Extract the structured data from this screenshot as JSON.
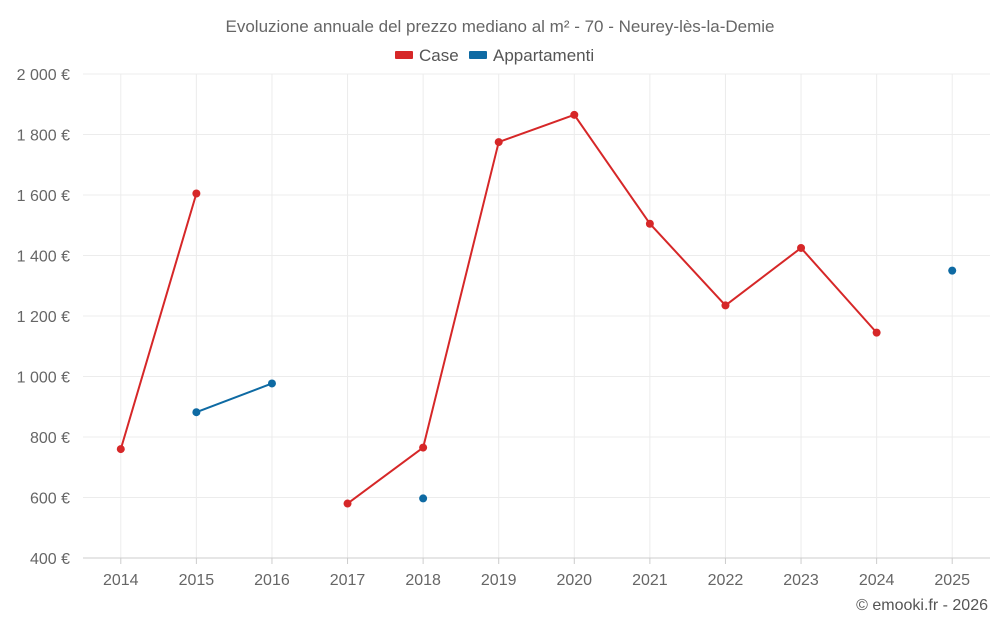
{
  "chart_data": {
    "type": "line",
    "title": "Evoluzione annuale del prezzo mediano al m² - 70 - Neurey-lès-la-Demie",
    "categories": [
      "2014",
      "2015",
      "2016",
      "2017",
      "2018",
      "2019",
      "2020",
      "2021",
      "2022",
      "2023",
      "2024",
      "2025"
    ],
    "series": [
      {
        "name": "Case",
        "color": "#d62728",
        "values": [
          760,
          1605,
          null,
          580,
          765,
          1775,
          1865,
          1505,
          1235,
          1425,
          1145,
          null
        ]
      },
      {
        "name": "Appartamenti",
        "color": "#0e6aa3",
        "values": [
          null,
          882,
          977,
          null,
          597,
          null,
          null,
          null,
          null,
          null,
          null,
          1350
        ]
      }
    ],
    "ylim": [
      400,
      2000
    ],
    "yticks": [
      400,
      600,
      800,
      1000,
      1200,
      1400,
      1600,
      1800,
      2000
    ],
    "ytick_labels": [
      "400 €",
      "600 €",
      "800 €",
      "1 000 €",
      "1 200 €",
      "1 400 €",
      "1 600 €",
      "1 800 €",
      "2 000 €"
    ],
    "legend": "top-center",
    "grid": true,
    "xlabel": "",
    "ylabel": ""
  },
  "credit": "© emooki.fr - 2026"
}
